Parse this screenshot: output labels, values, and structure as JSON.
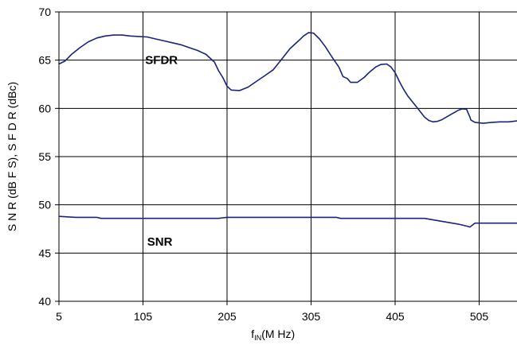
{
  "chart_data": {
    "type": "line",
    "xlabel": {
      "main": "f",
      "sub": "IN",
      "rest": "(M Hz)"
    },
    "ylabel": "S N R (dB F S),  S F D R (dBc)",
    "xlim": [
      5,
      555
    ],
    "ylim": [
      40,
      70
    ],
    "xticks": [
      5,
      105,
      205,
      305,
      405,
      505
    ],
    "yticks": [
      40,
      45,
      50,
      55,
      60,
      65,
      70
    ],
    "grid": true,
    "line_color": "#1a237e",
    "series": [
      {
        "name": "SFDR",
        "label_at": [
          127,
          65
        ],
        "x": [
          5,
          12,
          20,
          30,
          40,
          50,
          60,
          70,
          80,
          90,
          100,
          110,
          120,
          130,
          140,
          150,
          160,
          170,
          180,
          190,
          195,
          200,
          205,
          210,
          220,
          230,
          240,
          250,
          260,
          270,
          280,
          290,
          296,
          302,
          308,
          315,
          322,
          330,
          338,
          343,
          348,
          352,
          360,
          368,
          375,
          382,
          388,
          395,
          400,
          405,
          410,
          415,
          420,
          430,
          440,
          445,
          450,
          455,
          460,
          470,
          480,
          485,
          490,
          494,
          495,
          500,
          510,
          520,
          530,
          540,
          555
        ],
        "y": [
          64.6,
          64.9,
          65.6,
          66.3,
          66.9,
          67.3,
          67.5,
          67.6,
          67.6,
          67.5,
          67.45,
          67.4,
          67.2,
          67.0,
          66.8,
          66.6,
          66.3,
          66.0,
          65.6,
          64.8,
          63.9,
          63.2,
          62.3,
          61.9,
          61.85,
          62.2,
          62.8,
          63.4,
          64.0,
          65.1,
          66.2,
          67.0,
          67.5,
          67.85,
          67.8,
          67.2,
          66.4,
          65.3,
          64.3,
          63.3,
          63.1,
          62.7,
          62.7,
          63.2,
          63.8,
          64.3,
          64.55,
          64.6,
          64.3,
          63.7,
          62.8,
          62.0,
          61.3,
          60.2,
          59.1,
          58.75,
          58.6,
          58.65,
          58.8,
          59.3,
          59.8,
          59.95,
          59.9,
          59.1,
          58.8,
          58.55,
          58.45,
          58.55,
          58.6,
          58.6,
          58.75
        ]
      },
      {
        "name": "SNR",
        "label_at": [
          125,
          46.2
        ],
        "x": [
          5,
          15,
          25,
          50,
          55,
          100,
          150,
          195,
          200,
          205,
          250,
          300,
          335,
          340,
          350,
          400,
          440,
          460,
          480,
          490,
          494,
          500,
          520,
          555
        ],
        "y": [
          48.8,
          48.75,
          48.7,
          48.7,
          48.6,
          48.6,
          48.6,
          48.6,
          48.65,
          48.7,
          48.7,
          48.7,
          48.7,
          48.6,
          48.6,
          48.6,
          48.6,
          48.3,
          48.0,
          47.8,
          47.7,
          48.1,
          48.1,
          48.1
        ]
      }
    ]
  }
}
